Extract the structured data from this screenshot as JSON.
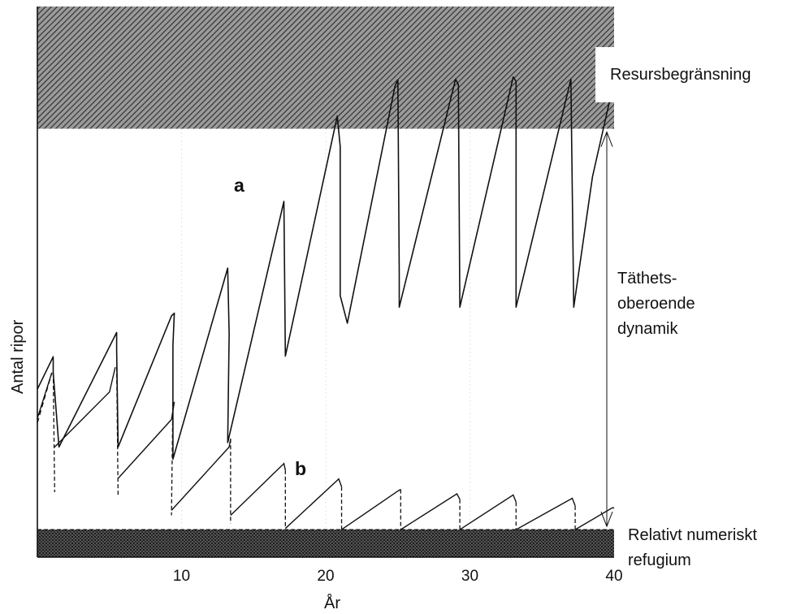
{
  "chart_data": {
    "type": "line",
    "xlabel": "År",
    "ylabel": "Antal ripor",
    "xticks": [
      10,
      20,
      30,
      40
    ],
    "xlim": [
      0,
      40
    ],
    "ylim": [
      0,
      100
    ],
    "colors": {
      "curve": "#111111",
      "band": "#3a3a3a",
      "band_bg": "#8c8c8c"
    },
    "bands": {
      "resource_limit": {
        "label": "Resursbegränsning",
        "y_from": 77.8,
        "y_to": 100
      },
      "refuge": {
        "label_lines": [
          "Relativt numeriskt",
          "refugium"
        ],
        "y_from": 0,
        "y_to": 5.0
      }
    },
    "middle_label": [
      "Täthets-",
      "oberoende",
      "dynamik"
    ],
    "series": [
      {
        "name": "a",
        "style": "solid",
        "points": [
          [
            0,
            30.5
          ],
          [
            1.1,
            36.4
          ],
          [
            1.1,
            33.5
          ],
          [
            1.5,
            20.0
          ],
          [
            5.5,
            40.8
          ],
          [
            5.5,
            37.8
          ],
          [
            5.6,
            20.0
          ],
          [
            9.3,
            43.8
          ],
          [
            9.5,
            44.3
          ],
          [
            9.4,
            38.5
          ],
          [
            9.4,
            17.8
          ],
          [
            13.2,
            52.5
          ],
          [
            13.3,
            40.5
          ],
          [
            13.2,
            20.8
          ],
          [
            17.1,
            64.6
          ],
          [
            17.2,
            36.5
          ],
          [
            20.8,
            80.1
          ],
          [
            21.0,
            74.6
          ],
          [
            21.0,
            47.5
          ],
          [
            21.5,
            42.5
          ],
          [
            24.8,
            85.5
          ],
          [
            25.0,
            86.7
          ],
          [
            25.1,
            51.3
          ],
          [
            25.1,
            45.4
          ],
          [
            29.0,
            86.8
          ],
          [
            29.2,
            85.8
          ],
          [
            29.3,
            45.4
          ],
          [
            33.0,
            87.2
          ],
          [
            33.2,
            86.4
          ],
          [
            33.2,
            45.4
          ],
          [
            37.0,
            86.8
          ],
          [
            37.2,
            45.4
          ],
          [
            38.5,
            69.1
          ],
          [
            39.8,
            84.1
          ]
        ]
      },
      {
        "name": "b",
        "style": "mixed",
        "rise_segments": [
          [
            [
              0,
              25.2
            ],
            [
              1.0,
              33.5
            ]
          ],
          [
            [
              1.2,
              20.0
            ],
            [
              5.0,
              30.0
            ],
            [
              5.4,
              34.5
            ]
          ],
          [
            [
              5.6,
              14.3
            ],
            [
              9.3,
              25.0
            ],
            [
              9.5,
              28.2
            ]
          ],
          [
            [
              9.3,
              8.5
            ],
            [
              13.3,
              20.0
            ],
            [
              13.4,
              21.5
            ]
          ],
          [
            [
              13.4,
              7.6
            ],
            [
              17.1,
              17.0
            ],
            [
              17.2,
              15.8
            ]
          ],
          [
            [
              17.2,
              5.2
            ],
            [
              20.9,
              14.2
            ],
            [
              21.1,
              12.8
            ]
          ],
          [
            [
              21.1,
              5.0
            ],
            [
              25.0,
              12.0
            ],
            [
              25.2,
              12.3
            ]
          ],
          [
            [
              25.2,
              5.0
            ],
            [
              29.1,
              11.5
            ],
            [
              29.3,
              10.5
            ]
          ],
          [
            [
              29.3,
              5.0
            ],
            [
              33.0,
              11.3
            ],
            [
              33.2,
              10.0
            ]
          ],
          [
            [
              33.2,
              5.0
            ],
            [
              37.1,
              10.7
            ],
            [
              37.3,
              9.3
            ]
          ],
          [
            [
              37.3,
              5.0
            ],
            [
              39.9,
              9.0
            ],
            [
              40.0,
              8.9
            ]
          ]
        ],
        "drops": [
          [
            1.1,
            33.5,
            1.2,
            11.8
          ],
          [
            5.5,
            34.5,
            5.6,
            11.1
          ],
          [
            9.4,
            28.2,
            9.3,
            7.6
          ],
          [
            13.4,
            21.5,
            13.4,
            6.1
          ],
          [
            17.2,
            15.8,
            17.2,
            5.2
          ],
          [
            21.1,
            12.8,
            21.1,
            5.0
          ],
          [
            25.2,
            12.3,
            25.2,
            5.0
          ],
          [
            29.3,
            10.5,
            29.3,
            5.0
          ],
          [
            33.2,
            10.0,
            33.2,
            5.0
          ],
          [
            37.3,
            9.3,
            37.3,
            5.0
          ]
        ],
        "pre_dashed": [
          [
            0,
            24.4
          ],
          [
            1.0,
            33.5
          ]
        ]
      }
    ]
  }
}
